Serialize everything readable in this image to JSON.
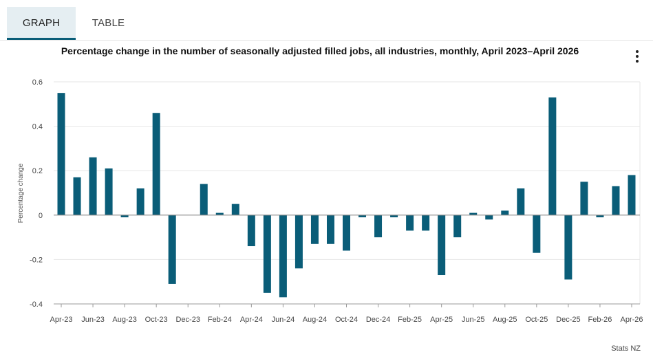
{
  "tabs": {
    "graph_label": "GRAPH",
    "table_label": "TABLE"
  },
  "menu_icon": "vertical-ellipsis-icon",
  "credit": "Stats NZ",
  "colors": {
    "bar": "#0a5d78",
    "grid": "#e6e6e6",
    "axis": "#999999",
    "tab_active_bg": "#e5eef2"
  },
  "chart_data": {
    "type": "bar",
    "title": "Percentage change in the number of seasonally adjusted filled jobs, all industries, monthly, April 2023–April 2026",
    "ylabel": "Percentage change",
    "xlabel": "",
    "ylim": [
      -0.4,
      0.6
    ],
    "yticks": [
      -0.4,
      -0.2,
      0,
      0.2,
      0.4,
      0.6
    ],
    "ytick_labels": [
      "-0.4",
      "-0.2",
      "0",
      "0.2",
      "0.4",
      "0.6"
    ],
    "grid": true,
    "categories": [
      "Apr-23",
      "May-23",
      "Jun-23",
      "Jul-23",
      "Aug-23",
      "Sep-23",
      "Oct-23",
      "Nov-23",
      "Dec-23",
      "Jan-24",
      "Feb-24",
      "Mar-24",
      "Apr-24",
      "May-24",
      "Jun-24",
      "Jul-24",
      "Aug-24",
      "Sep-24",
      "Oct-24",
      "Nov-24",
      "Dec-24",
      "Jan-25",
      "Feb-25",
      "Mar-25",
      "Apr-25",
      "May-25",
      "Jun-25",
      "Jul-25",
      "Aug-25",
      "Sep-25",
      "Oct-25",
      "Nov-25",
      "Dec-25",
      "Jan-26",
      "Feb-26",
      "Mar-26",
      "Apr-26"
    ],
    "xtick_labels": [
      "Apr-23",
      "",
      "Jun-23",
      "",
      "Aug-23",
      "",
      "Oct-23",
      "",
      "Dec-23",
      "",
      "Feb-24",
      "",
      "Apr-24",
      "",
      "Jun-24",
      "",
      "Aug-24",
      "",
      "Oct-24",
      "",
      "Dec-24",
      "",
      "Feb-25",
      "",
      "Apr-25",
      "",
      "Jun-25",
      "",
      "Aug-25",
      "",
      "Oct-25",
      "",
      "Dec-25",
      "",
      "Feb-26",
      "",
      "Apr-26"
    ],
    "values": [
      0.55,
      0.17,
      0.26,
      0.21,
      -0.01,
      0.12,
      0.46,
      -0.31,
      0.0,
      0.14,
      0.01,
      0.05,
      -0.14,
      -0.35,
      -0.37,
      -0.24,
      -0.13,
      -0.13,
      -0.16,
      -0.01,
      -0.1,
      -0.01,
      -0.07,
      -0.07,
      -0.27,
      -0.1,
      0.01,
      -0.02,
      0.02,
      0.12,
      -0.17,
      0.53,
      -0.29,
      0.15,
      -0.01,
      0.13,
      0.18
    ]
  }
}
